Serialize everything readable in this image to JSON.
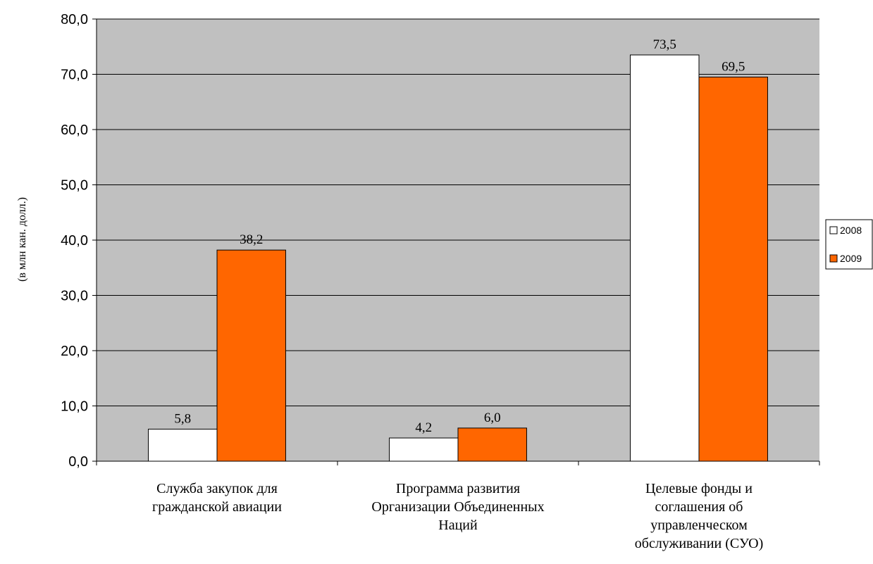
{
  "chart_data": {
    "type": "bar",
    "categories": [
      [
        "Служба закупок для",
        "гражданской авиации"
      ],
      [
        "Программа развития",
        "Организации Объединенных",
        "Наций"
      ],
      [
        "Целевые фонды и",
        "соглашения об",
        "управленческом",
        "обслуживании (СУО)"
      ]
    ],
    "series": [
      {
        "name": "2008",
        "values": [
          5.8,
          4.2,
          73.5
        ],
        "value_labels": [
          "5,8",
          "4,2",
          "73,5"
        ],
        "color": "#ffffff"
      },
      {
        "name": "2009",
        "values": [
          38.2,
          6.0,
          69.5
        ],
        "value_labels": [
          "38,2",
          "6,0",
          "69,5"
        ],
        "color": "#ff6600"
      }
    ],
    "ylabel": "(в млн кан. долл.)",
    "ylim": [
      0,
      80
    ],
    "yticks": [
      0,
      10,
      20,
      30,
      40,
      50,
      60,
      70,
      80
    ],
    "ytick_labels": [
      "0,0",
      "10,0",
      "20,0",
      "30,0",
      "40,0",
      "50,0",
      "60,0",
      "70,0",
      "80,0"
    ],
    "grid": true,
    "plot_background": "#c0c0c0",
    "legend_position": "right"
  }
}
